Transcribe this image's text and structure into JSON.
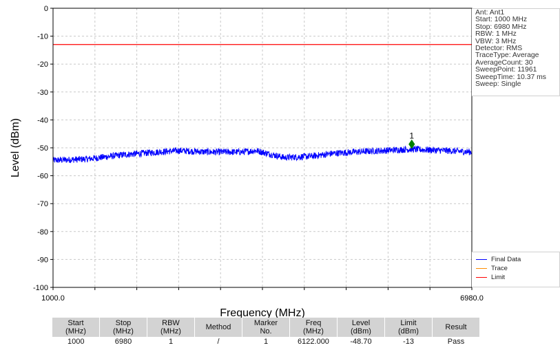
{
  "chart_data": {
    "type": "line",
    "xlabel": "Frequency (MHz)",
    "ylabel": "Level (dBm)",
    "xlim": [
      1000,
      6980
    ],
    "ylim": [
      -100,
      0
    ],
    "x_tick_labels": [
      "1000.0",
      "6980.0"
    ],
    "y_ticks": [
      0,
      -10,
      -20,
      -30,
      -40,
      -50,
      -60,
      -70,
      -80,
      -90,
      -100
    ],
    "grid": true,
    "legend_placement": "right-bottom",
    "series": [
      {
        "name": "Final Data",
        "color": "#0000ff",
        "x": [
          1000,
          1500,
          2000,
          2500,
          2800,
          3200,
          3700,
          3900,
          4300,
          4700,
          5000,
          5300,
          5700,
          6100,
          6600,
          6980
        ],
        "y": [
          -54.5,
          -54.0,
          -52.5,
          -51.5,
          -51.0,
          -51.5,
          -51.5,
          -51.0,
          -53.5,
          -53.0,
          -52.0,
          -51.5,
          -51.0,
          -50.5,
          -51.0,
          -51.5
        ]
      },
      {
        "name": "Trace",
        "color": "#ff8c00",
        "x": [],
        "y": []
      },
      {
        "name": "Limit",
        "color": "#ff0000",
        "x": [
          1000,
          6980
        ],
        "y": [
          -13,
          -13
        ]
      }
    ],
    "marker": {
      "label": "1",
      "x": 6122.0,
      "y": -48.7,
      "color": "#008000"
    }
  },
  "info_lines": [
    "Ant: Ant1",
    "Start: 1000 MHz",
    "Stop: 6980 MHz",
    "RBW: 1 MHz",
    "VBW: 3 MHz",
    "Detector: RMS",
    "TraceType: Average",
    "AverageCount: 30",
    "SweepPoint: 11961",
    "SweepTime: 10.37 ms",
    "Sweep: Single"
  ],
  "legend": [
    {
      "label": "Final Data",
      "color": "#0000ff"
    },
    {
      "label": "Trace",
      "color": "#ff8c00"
    },
    {
      "label": "Limit",
      "color": "#ff0000"
    }
  ],
  "result_table": {
    "headers": [
      [
        "Start",
        "(MHz)"
      ],
      [
        "Stop",
        "(MHz)"
      ],
      [
        "RBW",
        "(MHz)"
      ],
      [
        "Method"
      ],
      [
        "Marker",
        "No."
      ],
      [
        "Freq",
        "(MHz)"
      ],
      [
        "Level",
        "(dBm)"
      ],
      [
        "Limit",
        "(dBm)"
      ],
      [
        "Result"
      ]
    ],
    "rows": [
      [
        "1000",
        "6980",
        "1",
        "/",
        "1",
        "6122.000",
        "-48.70",
        "-13",
        "Pass"
      ]
    ]
  }
}
